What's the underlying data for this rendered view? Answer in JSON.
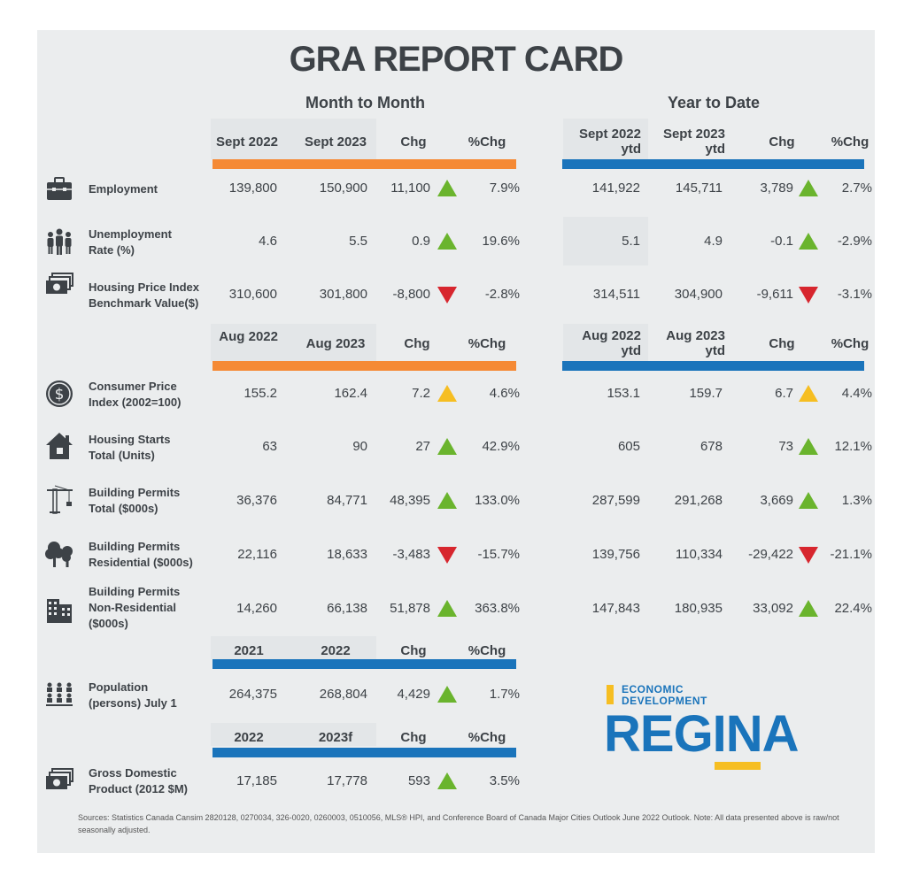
{
  "title": "GRA REPORT CARD",
  "sections": {
    "month_to_month": "Month to Month",
    "year_to_date": "Year to Date"
  },
  "headers1": {
    "m1": "Sept 2022",
    "m2": "Sept 2023",
    "chg": "Chg",
    "pchg": "%Chg",
    "y1": "Sept 2022 ytd",
    "y2": "Sept 2023 ytd",
    "ychg": "Chg",
    "ypchg": "%Chg"
  },
  "headers2": {
    "m1": "Aug 2022",
    "m2": "Aug 2023",
    "chg": "Chg",
    "pchg": "%Chg",
    "y1": "Aug 2022 ytd",
    "y2": "Aug 2023 ytd",
    "ychg": "Chg",
    "ypchg": "%Chg"
  },
  "headers3": {
    "m1": "2021",
    "m2": "2022",
    "chg": "Chg",
    "pchg": "%Chg"
  },
  "headers4": {
    "m1": "2022",
    "m2": "2023f",
    "chg": "Chg",
    "pchg": "%Chg"
  },
  "rows": [
    {
      "label": "Employment",
      "icon": "briefcase-icon",
      "m1": "139,800",
      "m2": "150,900",
      "chg": "11,100",
      "dir": "up",
      "pchg": "7.9%",
      "y1": "141,922",
      "y2": "145,711",
      "ychg": "3,789",
      "ydir": "up",
      "ypchg": "2.7%"
    },
    {
      "label": "Unemployment Rate (%)",
      "icon": "people-icon",
      "m1": "4.6",
      "m2": "5.5",
      "chg": "0.9",
      "dir": "up",
      "pchg": "19.6%",
      "y1": "5.1",
      "y2": "4.9",
      "ychg": "-0.1",
      "ydir": "up",
      "ypchg": "-2.9%"
    },
    {
      "label": "Housing Price Index Benchmark Value($)",
      "icon": "money-icon",
      "m1": "310,600",
      "m2": "301,800",
      "chg": "-8,800",
      "dir": "down",
      "pchg": "-2.8%",
      "y1": "314,511",
      "y2": "304,900",
      "ychg": "-9,611",
      "ydir": "down",
      "ypchg": "-3.1%"
    },
    {
      "label": "Consumer Price Index (2002=100)",
      "icon": "dollar-coin-icon",
      "m1": "155.2",
      "m2": "162.4",
      "chg": "7.2",
      "dir": "neutral",
      "pchg": "4.6%",
      "y1": "153.1",
      "y2": "159.7",
      "ychg": "6.7",
      "ydir": "neutral",
      "ypchg": "4.4%"
    },
    {
      "label": "Housing Starts Total (Units)",
      "icon": "house-icon",
      "m1": "63",
      "m2": "90",
      "chg": "27",
      "dir": "up",
      "pchg": "42.9%",
      "y1": "605",
      "y2": "678",
      "ychg": "73",
      "ydir": "up",
      "ypchg": "12.1%"
    },
    {
      "label": "Building Permits Total ($000s)",
      "icon": "crane-icon",
      "m1": "36,376",
      "m2": "84,771",
      "chg": "48,395",
      "dir": "up",
      "pchg": "133.0%",
      "y1": "287,599",
      "y2": "291,268",
      "ychg": "3,669",
      "ydir": "up",
      "ypchg": "1.3%"
    },
    {
      "label": "Building Permits Residential ($000s)",
      "icon": "trees-icon",
      "m1": "22,116",
      "m2": "18,633",
      "chg": "-3,483",
      "dir": "down",
      "pchg": "-15.7%",
      "y1": "139,756",
      "y2": "110,334",
      "ychg": "-29,422",
      "ydir": "down",
      "ypchg": "-21.1%"
    },
    {
      "label": "Building Permits Non-Residential ($000s)",
      "icon": "office-building-icon",
      "m1": "14,260",
      "m2": "66,138",
      "chg": "51,878",
      "dir": "up",
      "pchg": "363.8%",
      "y1": "147,843",
      "y2": "180,935",
      "ychg": "33,092",
      "ydir": "up",
      "ypchg": "22.4%"
    },
    {
      "label": "Population (persons) July 1",
      "icon": "population-icon",
      "m1": "264,375",
      "m2": "268,804",
      "chg": "4,429",
      "dir": "up",
      "pchg": "1.7%"
    },
    {
      "label": "Gross Domestic Product (2012 $M)",
      "icon": "money-icon",
      "m1": "17,185",
      "m2": "17,778",
      "chg": "593",
      "dir": "up",
      "pchg": "3.5%"
    }
  ],
  "logo": {
    "line1": "ECONOMIC",
    "line2": "DEVELOPMENT",
    "name": "REGINA"
  },
  "sources": "Sources: Statistics Canada Cansim 2820128, 0270034, 326-0020, 0260003, 0510056, MLS® HPI, and Conference Board of Canada Major Cities Outlook June 2022 Outlook. Note: All data presented above is raw/not seasonally adjusted.",
  "colors": {
    "orange": "#f58a35",
    "blue": "#1a74bb",
    "up": "#6ab42d",
    "down": "#d7262e",
    "neutral": "#f6be22"
  }
}
